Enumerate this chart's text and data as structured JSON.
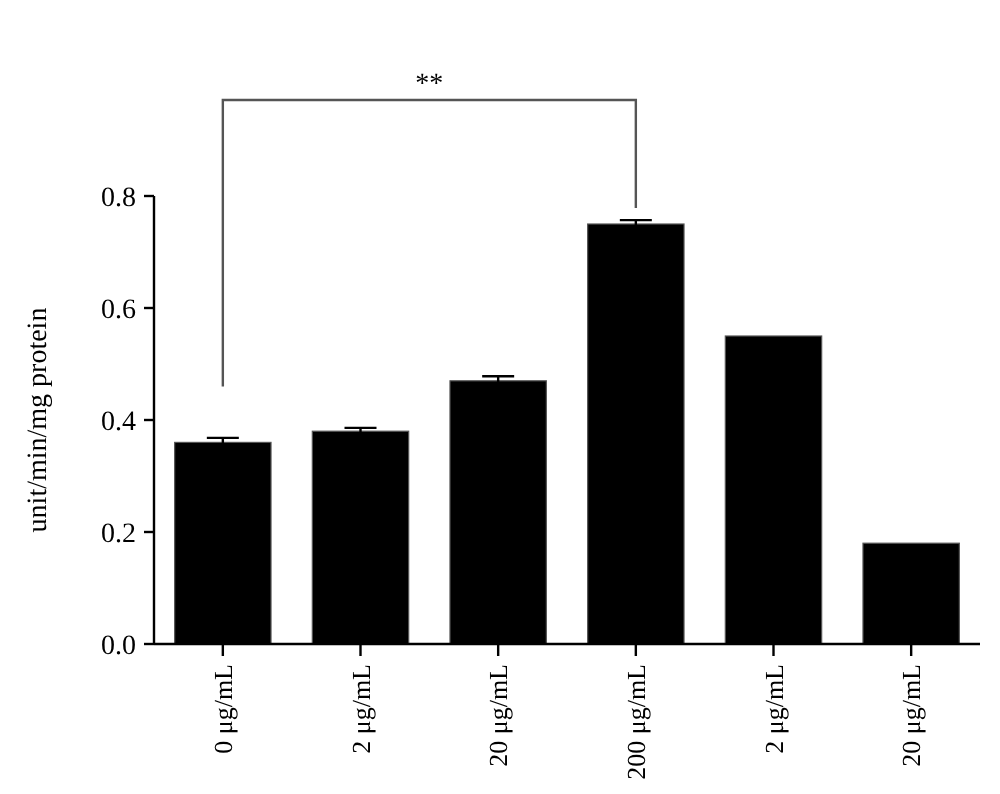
{
  "chart_data": {
    "type": "bar",
    "ylabel": "unit/min/mg protein",
    "categories": [
      "0 μg/mL",
      "2 μg/mL",
      "20 μg/mL",
      "200 μg/mL",
      "2 μg/mL",
      "20 μg/mL"
    ],
    "values": [
      0.36,
      0.38,
      0.47,
      0.75,
      0.55,
      0.18
    ],
    "errors": [
      0.008,
      0.006,
      0.008,
      0.007,
      null,
      null
    ],
    "color": "#000000",
    "ylim": [
      0,
      0.8
    ],
    "yticks": [
      {
        "value": 0,
        "label": "0.0"
      },
      {
        "value": 0.2,
        "label": "0.2"
      },
      {
        "value": 0.4,
        "label": "0.4"
      },
      {
        "value": 0.6,
        "label": "0.6"
      },
      {
        "value": 0.8,
        "label": "0.8"
      }
    ],
    "annotations": [
      "**"
    ],
    "grid": false
  }
}
